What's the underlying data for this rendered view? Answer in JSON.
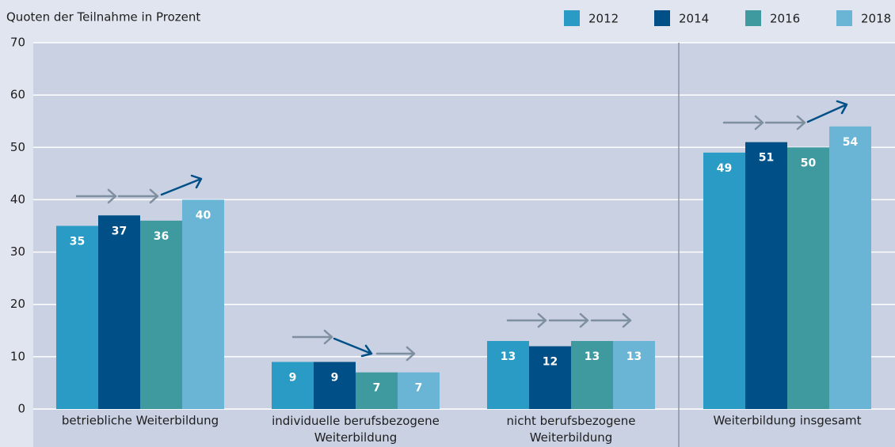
{
  "chart_data": {
    "type": "bar",
    "title": "Quoten der Teilnahme in Prozent",
    "categories": [
      "betriebliche Weiterbildung",
      "individuelle berufsbezogene Weiterbildung",
      "nicht berufsbezogene Weiterbildung",
      "Weiterbildung insgesamt"
    ],
    "series": [
      {
        "name": "2012",
        "color": "#2a9bc4",
        "values": [
          35,
          9,
          13,
          49
        ]
      },
      {
        "name": "2014",
        "color": "#004f86",
        "values": [
          37,
          9,
          12,
          51
        ]
      },
      {
        "name": "2016",
        "color": "#3f9aa0",
        "values": [
          36,
          7,
          13,
          50
        ]
      },
      {
        "name": "2018",
        "color": "#6ab4d6",
        "values": [
          40,
          7,
          13,
          54
        ]
      }
    ],
    "ylim": [
      0,
      70
    ],
    "yticks": [
      0,
      10,
      20,
      30,
      40,
      50,
      60,
      70
    ],
    "grid": true,
    "legend": "top-right"
  }
}
